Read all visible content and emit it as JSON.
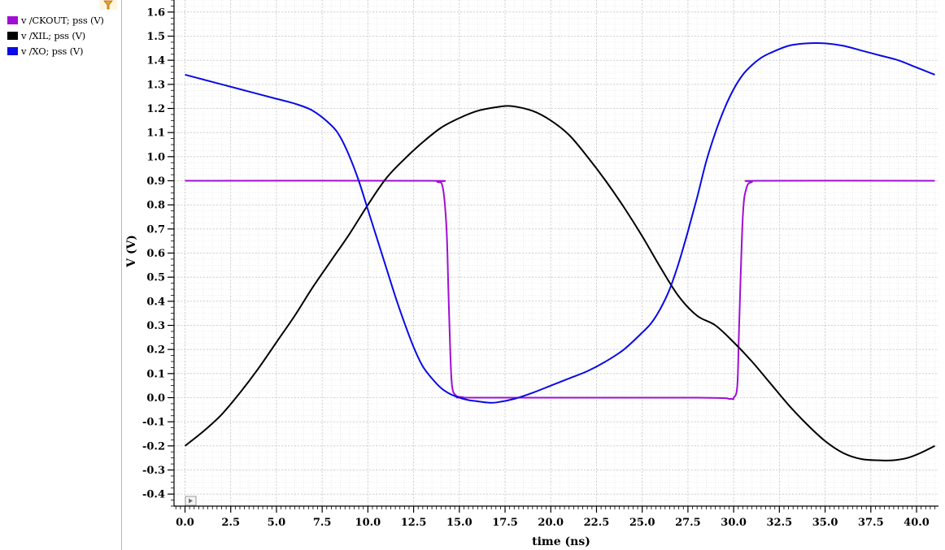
{
  "legend": {
    "items": [
      {
        "label": "v /CKOUT; pss (V)",
        "color": "#a10ed3"
      },
      {
        "label": "v /XIL; pss (V)",
        "color": "#000000"
      },
      {
        "label": "v /XO; pss (V)",
        "color": "#0a0ae6"
      }
    ]
  },
  "chart_data": {
    "type": "line",
    "xlabel": "time (ns)",
    "ylabel": "V (V)",
    "xlim": [
      -0.6,
      41.2
    ],
    "ylim": [
      -0.45,
      1.65
    ],
    "xticks": [
      0.0,
      2.5,
      5.0,
      7.5,
      10.0,
      12.5,
      15.0,
      17.5,
      20.0,
      22.5,
      25.0,
      27.5,
      30.0,
      32.5,
      35.0,
      37.5,
      40.0
    ],
    "xtick_labels": [
      "0.0",
      "2.5",
      "5.0",
      "7.5",
      "10.0",
      "12.5",
      "15.0",
      "17.5",
      "20.0",
      "22.5",
      "25.0",
      "27.5",
      "30.0",
      "32.5",
      "35.0",
      "37.5",
      "40.0"
    ],
    "yticks": [
      -0.4,
      -0.3,
      -0.2,
      -0.1,
      0.0,
      0.1,
      0.2,
      0.3,
      0.4,
      0.5,
      0.6,
      0.7,
      0.8,
      0.9,
      1.0,
      1.1,
      1.2,
      1.3,
      1.4,
      1.5,
      1.6
    ],
    "ytick_labels": [
      "-0.4",
      "-0.3",
      "-0.2",
      "-0.1",
      "0.0",
      "0.1",
      "0.2",
      "0.3",
      "0.4",
      "0.5",
      "0.6",
      "0.7",
      "0.8",
      "0.9",
      "1.0",
      "1.1",
      "1.2",
      "1.3",
      "1.4",
      "1.5",
      "1.6"
    ],
    "grid": true,
    "legend_position": "left-panel",
    "series": [
      {
        "name": "v /CKOUT; pss (V)",
        "color": "#a10ed3",
        "x": [
          0,
          13.0,
          13.8,
          14.1,
          14.3,
          14.4,
          14.5,
          14.6,
          14.8,
          15.2,
          16,
          28,
          29.8,
          30.0,
          30.2,
          30.3,
          30.5,
          30.7,
          31.0,
          31.5,
          41
        ],
        "y": [
          0.9,
          0.9,
          0.895,
          0.87,
          0.7,
          0.45,
          0.2,
          0.05,
          0.01,
          0.002,
          0.0,
          0.0,
          -0.005,
          0.0,
          0.05,
          0.3,
          0.75,
          0.87,
          0.895,
          0.9,
          0.9
        ]
      },
      {
        "name": "v /XIL; pss (V)",
        "color": "#000000",
        "x": [
          0,
          1.0,
          2.0,
          3.0,
          4.0,
          5.0,
          6.0,
          7.0,
          8.0,
          9.0,
          10.0,
          11.0,
          12.0,
          13.0,
          14.0,
          15.0,
          16.0,
          17.0,
          17.8,
          19.0,
          20.0,
          21.0,
          22.0,
          23.0,
          24.0,
          25.0,
          26.0,
          27.0,
          28.0,
          29.0,
          30.0,
          31.0,
          32.0,
          33.0,
          34.0,
          35.0,
          36.0,
          37.0,
          38.0,
          38.7,
          39.5,
          40.2,
          41.0
        ],
        "y": [
          -0.2,
          -0.14,
          -0.07,
          0.02,
          0.12,
          0.23,
          0.34,
          0.46,
          0.57,
          0.68,
          0.8,
          0.91,
          0.99,
          1.06,
          1.12,
          1.16,
          1.19,
          1.205,
          1.21,
          1.19,
          1.15,
          1.09,
          1.0,
          0.9,
          0.79,
          0.67,
          0.54,
          0.42,
          0.34,
          0.3,
          0.23,
          0.15,
          0.06,
          -0.03,
          -0.11,
          -0.18,
          -0.23,
          -0.255,
          -0.26,
          -0.26,
          -0.25,
          -0.23,
          -0.2
        ]
      },
      {
        "name": "v /XO; pss (V)",
        "color": "#0a0ae6",
        "x": [
          0,
          1.0,
          2.0,
          3.0,
          4.0,
          5.0,
          6.0,
          7.0,
          8.0,
          8.5,
          9.0,
          9.5,
          10.0,
          10.5,
          11.0,
          11.5,
          12.0,
          12.5,
          13.0,
          13.5,
          14.0,
          14.5,
          15.0,
          15.5,
          16.0,
          16.5,
          17.0,
          18.0,
          19.0,
          20.0,
          21.0,
          22.0,
          23.0,
          24.0,
          25.0,
          25.5,
          26.0,
          26.5,
          27.0,
          27.5,
          28.0,
          28.5,
          29.0,
          29.5,
          30.0,
          30.5,
          31.0,
          31.5,
          32.0,
          33.0,
          34.0,
          35.0,
          36.0,
          37.0,
          38.0,
          39.0,
          40.0,
          41.0
        ],
        "y": [
          1.34,
          1.32,
          1.3,
          1.28,
          1.26,
          1.24,
          1.22,
          1.19,
          1.13,
          1.08,
          1.0,
          0.9,
          0.78,
          0.66,
          0.54,
          0.42,
          0.31,
          0.21,
          0.13,
          0.08,
          0.04,
          0.015,
          0.0,
          -0.01,
          -0.015,
          -0.02,
          -0.02,
          -0.005,
          0.02,
          0.05,
          0.08,
          0.11,
          0.15,
          0.2,
          0.27,
          0.31,
          0.37,
          0.45,
          0.56,
          0.69,
          0.83,
          0.98,
          1.1,
          1.2,
          1.28,
          1.34,
          1.38,
          1.41,
          1.43,
          1.46,
          1.47,
          1.47,
          1.46,
          1.44,
          1.42,
          1.4,
          1.37,
          1.34
        ]
      }
    ]
  }
}
